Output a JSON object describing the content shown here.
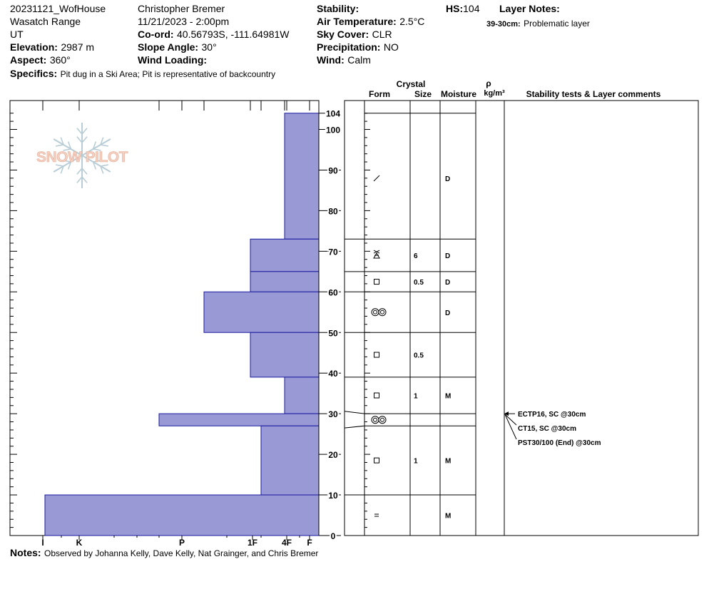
{
  "header": {
    "col1": {
      "pit_name": "20231121_WofHouse",
      "range": "Wasatch Range",
      "state": "UT",
      "elevation_label": "Elevation:",
      "elevation_value": "2987 m",
      "aspect_label": "Aspect:",
      "aspect_value": "360°"
    },
    "col2": {
      "observer": "Christopher Bremer",
      "datetime": "11/21/2023 - 2:00pm",
      "coord_label": "Co-ord:",
      "coord_value": "40.56793S, -111.64981W",
      "slope_label": "Slope Angle:",
      "slope_value": "30°",
      "wind_loading_label": "Wind Loading:",
      "wind_loading_value": ""
    },
    "col3": {
      "stability_label": "Stability:",
      "stability_value": "",
      "air_temp_label": "Air Temperature:",
      "air_temp_value": "2.5°C",
      "sky_label": "Sky Cover:",
      "sky_value": "CLR",
      "precip_label": "Precipitation:",
      "precip_value": "NO",
      "wind_label": "Wind:",
      "wind_value": "Calm"
    },
    "col4": {
      "hs_label": "HS:",
      "hs_value": "104",
      "layer_notes_label": "Layer Notes:",
      "layer_note_range": "39-30cm:",
      "layer_note_text": "Problematic layer"
    },
    "specifics_label": "Specifics:",
    "specifics_text": "Pit dug in a Ski Area; Pit is representative of backcountry"
  },
  "logo_text": "SNOW PILOT",
  "notes_label": "Notes:",
  "notes_text": "Observed by Johanna Kelly, Dave Kelly, Nat Grainger, and Chris Bremer",
  "table_headers": {
    "crystal": "Crystal",
    "form": "Form",
    "size": "Size",
    "moisture": "Moisture",
    "rho": "ρ",
    "density_unit": "kg/m³",
    "comments": "Stability tests & Layer comments"
  },
  "chart_data": {
    "type": "snow_profile",
    "snow_height": 104,
    "ylim": [
      0,
      104
    ],
    "y_ticks": [
      0,
      10,
      20,
      30,
      40,
      50,
      60,
      70,
      80,
      90,
      100,
      104
    ],
    "hardness_scale": [
      "I",
      "K",
      "P",
      "1F",
      "4F",
      "F"
    ],
    "layers": [
      {
        "top": 104,
        "bottom": 73,
        "hardness": "4F",
        "form": "decomposing",
        "size": "",
        "moisture": "D"
      },
      {
        "top": 73,
        "bottom": 65,
        "hardness": "1F-",
        "form": "faceted-rounding",
        "size": "6",
        "moisture": "D"
      },
      {
        "top": 65,
        "bottom": 60,
        "hardness": "1F-",
        "form": "faceted",
        "size": "0.5",
        "moisture": "D"
      },
      {
        "top": 60,
        "bottom": 50,
        "hardness": "P+",
        "form": "melt-freeze",
        "size": "",
        "moisture": "D"
      },
      {
        "top": 50,
        "bottom": 39,
        "hardness": "1F-",
        "form": "faceted",
        "size": "0.5",
        "moisture": ""
      },
      {
        "top": 39,
        "bottom": 30,
        "hardness": "4F",
        "form": "faceted",
        "size": "1",
        "moisture": "M"
      },
      {
        "top": 30,
        "bottom": 27,
        "hardness": "P-",
        "form": "melt-freeze",
        "size": "",
        "moisture": ""
      },
      {
        "top": 27,
        "bottom": 10,
        "hardness": "1F",
        "form": "faceted",
        "size": "1",
        "moisture": "M"
      },
      {
        "top": 10,
        "bottom": 0,
        "hardness": "I+",
        "form": "ice-layer",
        "size": "",
        "moisture": "M"
      }
    ],
    "stability_tests": [
      {
        "text": "ECTP16, SC @30cm",
        "depth": 30
      },
      {
        "text": "CT15, SC @30cm",
        "depth": 30
      },
      {
        "text": "PST30/100 (End) @30cm",
        "depth": 30
      }
    ],
    "colors": {
      "bar_fill": "#9999d6",
      "bar_stroke": "#1a1aa0",
      "logo_text": "#f4cfc0",
      "logo_flake": "#b8cdd6"
    }
  }
}
